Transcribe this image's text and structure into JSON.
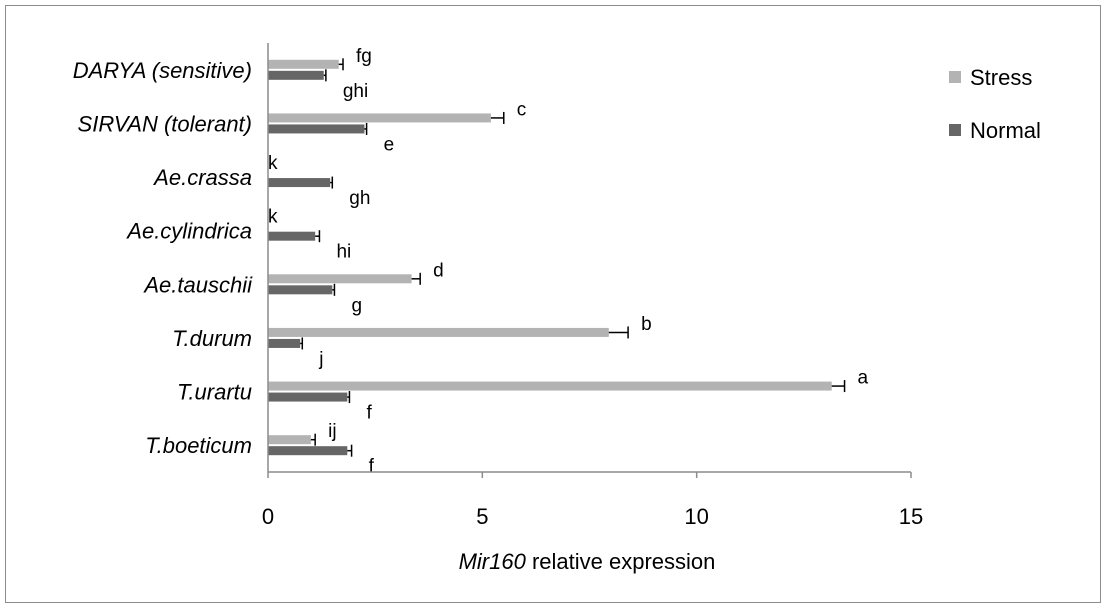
{
  "chart_data": {
    "type": "bar",
    "orientation": "horizontal",
    "categories": [
      "DARYA (sensitive)",
      "SIRVAN (tolerant)",
      "Ae.crassa",
      "Ae.cylindrica",
      "Ae.tauschii",
      "T.durum",
      "T.urartu",
      "T.boeticum"
    ],
    "series": [
      {
        "name": "Stress",
        "color": "#b3b3b3",
        "values": [
          1.65,
          5.2,
          0.0,
          0.0,
          3.35,
          7.95,
          13.15,
          1.0
        ],
        "errors": [
          0.1,
          0.3,
          0.0,
          0.0,
          0.2,
          0.45,
          0.3,
          0.1
        ],
        "labels": [
          "fg",
          "c",
          "k",
          "k",
          "d",
          "b",
          "a",
          "ij"
        ]
      },
      {
        "name": "Normal",
        "color": "#666666",
        "values": [
          1.3,
          2.25,
          1.45,
          1.1,
          1.5,
          0.75,
          1.85,
          1.85
        ],
        "errors": [
          0.05,
          0.05,
          0.05,
          0.1,
          0.05,
          0.05,
          0.05,
          0.1
        ],
        "labels": [
          "ghi",
          "e",
          "gh",
          "hi",
          "g",
          "j",
          "f",
          "f"
        ]
      }
    ],
    "xlim": [
      0,
      15
    ],
    "xticks": [
      0,
      5,
      10,
      15
    ],
    "xlabel_italic": "Mir160",
    "xlabel_rest": " relative expression",
    "legend": "right"
  }
}
